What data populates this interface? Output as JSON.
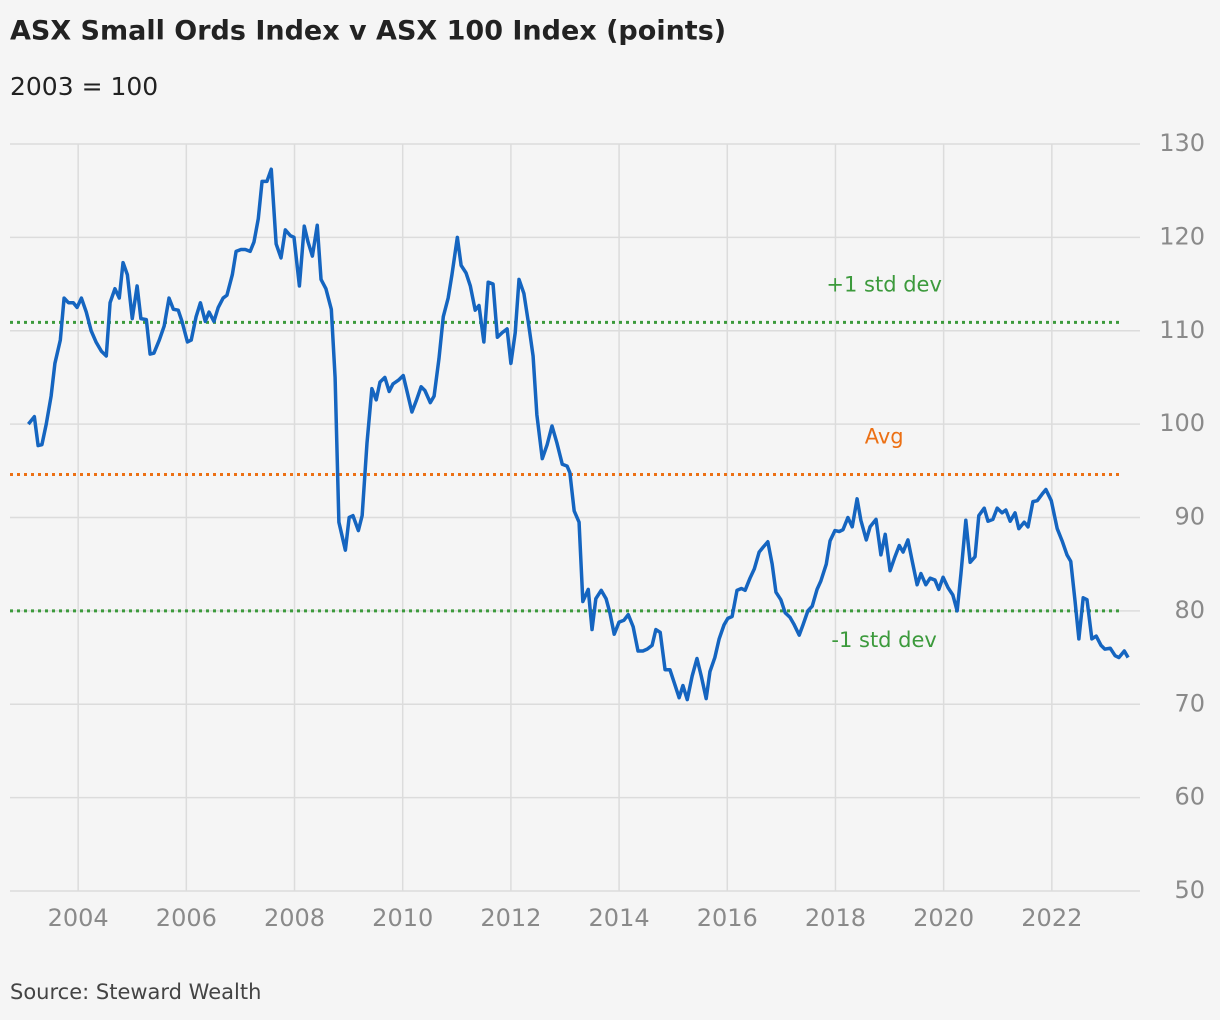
{
  "chart_data": {
    "type": "line",
    "title": "ASX Small Ords Index v ASX 100 Index (points)",
    "subtitle": "2003 = 100",
    "source": "Source: Steward Wealth",
    "xlim": [
      2002.74,
      2023.63
    ],
    "xticks": [
      2004,
      2006,
      2008,
      2010,
      2012,
      2014,
      2016,
      2018,
      2020,
      2022
    ],
    "ylim": [
      50,
      130
    ],
    "yticks": [
      50,
      60,
      70,
      80,
      90,
      100,
      110,
      120,
      130
    ],
    "grid": true,
    "reference_lines": [
      {
        "label": "+1 std dev",
        "value": 110.9,
        "color": "#3c9a3c"
      },
      {
        "label": "Avg",
        "value": 94.6,
        "color": "#ec7014"
      },
      {
        "label": "-1 std dev",
        "value": 80.0,
        "color": "#3c9a3c"
      }
    ],
    "x": [
      2003.08,
      2003.19,
      2003.26,
      2003.33,
      2003.41,
      2003.5,
      2003.57,
      2003.67,
      2003.74,
      2003.82,
      2003.91,
      2003.98,
      2004.06,
      2004.15,
      2004.24,
      2004.33,
      2004.43,
      2004.52,
      2004.59,
      2004.68,
      2004.76,
      2004.83,
      2004.91,
      2005.0,
      2005.09,
      2005.16,
      2005.26,
      2005.33,
      2005.4,
      2005.5,
      2005.59,
      2005.68,
      2005.76,
      2005.85,
      2005.92,
      2006.02,
      2006.09,
      2006.18,
      2006.26,
      2006.35,
      2006.42,
      2006.51,
      2006.59,
      2006.68,
      2006.75,
      2006.85,
      2006.92,
      2007.01,
      2007.09,
      2007.18,
      2007.25,
      2007.33,
      2007.4,
      2007.49,
      2007.57,
      2007.66,
      2007.75,
      2007.83,
      2007.92,
      2007.99,
      2008.09,
      2008.18,
      2008.25,
      2008.33,
      2008.42,
      2008.49,
      2008.58,
      2008.68,
      2008.75,
      2008.82,
      2008.94,
      2009.01,
      2009.08,
      2009.18,
      2009.25,
      2009.34,
      2009.43,
      2009.51,
      2009.58,
      2009.67,
      2009.75,
      2009.82,
      2009.92,
      2010.01,
      2010.08,
      2010.17,
      2010.25,
      2010.34,
      2010.41,
      2010.51,
      2010.58,
      2010.67,
      2010.75,
      2010.84,
      2010.91,
      2011.01,
      2011.08,
      2011.17,
      2011.25,
      2011.34,
      2011.41,
      2011.5,
      2011.58,
      2011.67,
      2011.75,
      2011.84,
      2011.93,
      2012.0,
      2012.08,
      2012.15,
      2012.24,
      2012.32,
      2012.41,
      2012.48,
      2012.58,
      2012.67,
      2012.76,
      2012.85,
      2012.95,
      2013.04,
      2013.09,
      2013.17,
      2013.26,
      2013.33,
      2013.43,
      2013.5,
      2013.57,
      2013.67,
      2013.76,
      2013.83,
      2013.91,
      2014.0,
      2014.09,
      2014.17,
      2014.26,
      2014.35,
      2014.44,
      2014.52,
      2014.61,
      2014.68,
      2014.76,
      2014.85,
      2014.94,
      2015.02,
      2015.11,
      2015.18,
      2015.26,
      2015.35,
      2015.44,
      2015.52,
      2015.61,
      2015.68,
      2015.77,
      2015.85,
      2015.94,
      2016.01,
      2016.09,
      2016.18,
      2016.26,
      2016.33,
      2016.42,
      2016.5,
      2016.59,
      2016.66,
      2016.75,
      2016.83,
      2016.9,
      2016.99,
      2017.07,
      2017.16,
      2017.23,
      2017.33,
      2017.4,
      2017.49,
      2017.57,
      2017.66,
      2017.73,
      2017.83,
      2017.9,
      2017.99,
      2018.07,
      2018.14,
      2018.23,
      2018.31,
      2018.4,
      2018.47,
      2018.57,
      2018.64,
      2018.75,
      2018.84,
      2018.92,
      2019.01,
      2019.1,
      2019.18,
      2019.25,
      2019.34,
      2019.42,
      2019.51,
      2019.58,
      2019.67,
      2019.75,
      2019.84,
      2019.91,
      2019.99,
      2020.08,
      2020.17,
      2020.25,
      2020.32,
      2020.41,
      2020.49,
      2020.58,
      2020.65,
      2020.75,
      2020.82,
      2020.91,
      2020.99,
      2021.08,
      2021.15,
      2021.23,
      2021.32,
      2021.39,
      2021.49,
      2021.56,
      2021.65,
      2021.73,
      2021.82,
      2021.89,
      2021.99,
      2022.1,
      2022.19,
      2022.28,
      2022.35,
      2022.43,
      2022.5,
      2022.58,
      2022.65,
      2022.74,
      2022.82,
      2022.91,
      2022.98,
      2023.08,
      2023.17,
      2023.24,
      2023.34,
      2023.41
    ],
    "series": [
      {
        "color": "#1565c0",
        "values": [
          100,
          100.8,
          97.7,
          97.8,
          100,
          103,
          106.5,
          109,
          113.5,
          113,
          113,
          112.5,
          113.5,
          112,
          110,
          108.8,
          107.8,
          107.3,
          113,
          114.5,
          113.5,
          117.3,
          116,
          111.3,
          114.8,
          111.3,
          111.2,
          107.5,
          107.6,
          109,
          110.5,
          113.5,
          112.3,
          112.2,
          111,
          108.8,
          109,
          111.5,
          113,
          111,
          112,
          111,
          112.5,
          113.5,
          113.8,
          116,
          118.5,
          118.7,
          118.7,
          118.5,
          119.5,
          122,
          126,
          126,
          127.3,
          119.3,
          117.8,
          120.8,
          120.2,
          120,
          114.8,
          121.2,
          119.5,
          118,
          121.3,
          115.5,
          114.5,
          112.3,
          105,
          89.5,
          86.5,
          90,
          90.2,
          88.6,
          90.2,
          98,
          103.8,
          102.6,
          104.5,
          105,
          103.5,
          104.3,
          104.7,
          105.2,
          103.5,
          101.3,
          102.5,
          104,
          103.6,
          102.3,
          103,
          107,
          111.5,
          113.5,
          116,
          120,
          117,
          116.2,
          114.8,
          112.2,
          112.7,
          108.8,
          115.2,
          115,
          109.3,
          109.8,
          110.2,
          106.5,
          109.8,
          115.5,
          114,
          111,
          107.3,
          101,
          96.3,
          97.8,
          99.8,
          98,
          95.7,
          95.5,
          94.8,
          90.7,
          89.5,
          81,
          82.3,
          78,
          81.3,
          82.2,
          81.3,
          79.8,
          77.5,
          78.8,
          79,
          79.6,
          78.3,
          75.7,
          75.7,
          75.9,
          76.3,
          78,
          77.7,
          73.7,
          73.7,
          72.3,
          70.7,
          72,
          70.5,
          73,
          74.9,
          73,
          70.6,
          73.5,
          75,
          77,
          78.5,
          79.2,
          79.4,
          82.2,
          82.4,
          82.2,
          83.5,
          84.5,
          86.3,
          86.8,
          87.4,
          85,
          82,
          81.2,
          79.8,
          79.3,
          78.6,
          77.4,
          78.5,
          80,
          80.5,
          82.3,
          83.2,
          85,
          87.5,
          88.6,
          88.5,
          88.7,
          90,
          89,
          92,
          89.7,
          87.6,
          89,
          89.8,
          86,
          88.2,
          84.3,
          85.8,
          87,
          86.3,
          87.6,
          85.3,
          82.8,
          84,
          82.8,
          83.5,
          83.3,
          82.3,
          83.6,
          82.5,
          81.7,
          80,
          84,
          89.7,
          85.2,
          85.8,
          90.2,
          91,
          89.6,
          89.8,
          91,
          90.5,
          90.8,
          89.6,
          90.5,
          88.8,
          89.5,
          89,
          91.7,
          91.8,
          92.5,
          93,
          91.8,
          88.8,
          87.5,
          86,
          85.3,
          81,
          77,
          81.4,
          81.2,
          77,
          77.3,
          76.3,
          75.9,
          76,
          75.2,
          75,
          75.7,
          75
        ]
      }
    ]
  }
}
